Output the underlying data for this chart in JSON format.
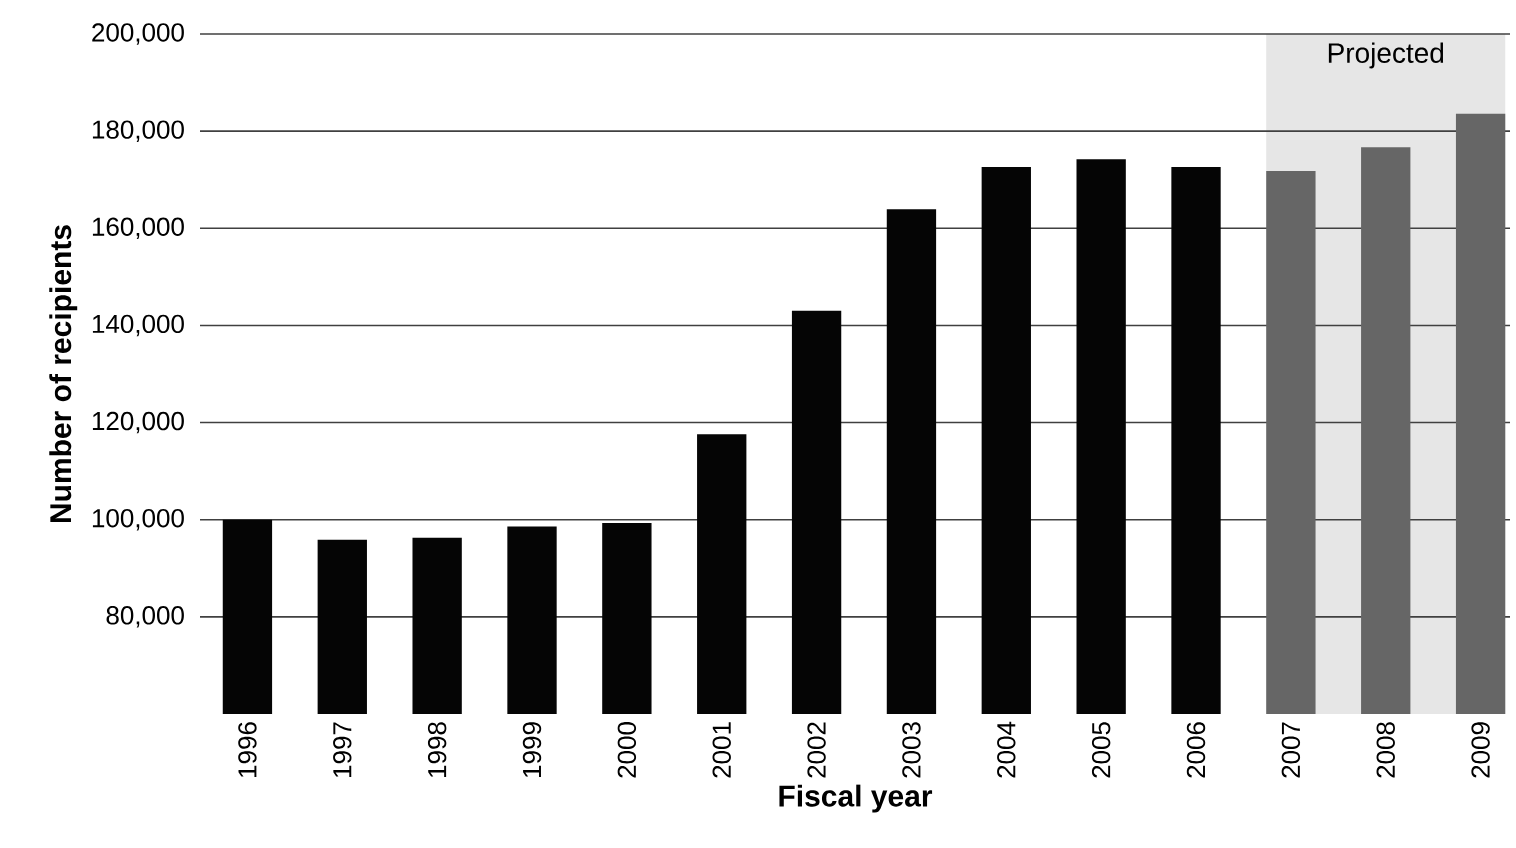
{
  "chart_data": {
    "type": "bar",
    "xlabel": "Fiscal year",
    "ylabel": "Number of recipients",
    "categories": [
      "1996",
      "1997",
      "1998",
      "1999",
      "2000",
      "2001",
      "2002",
      "2003",
      "2004",
      "2005",
      "2006",
      "2007",
      "2008",
      "2009"
    ],
    "values": [
      100000,
      95900,
      96300,
      98600,
      99300,
      117600,
      143000,
      163900,
      172600,
      174200,
      172600,
      171800,
      176700,
      183600
    ],
    "colors": [
      "#050505",
      "#050505",
      "#050505",
      "#050505",
      "#050505",
      "#050505",
      "#050505",
      "#050505",
      "#050505",
      "#050505",
      "#050505",
      "#666666",
      "#666666",
      "#666666"
    ],
    "ylim": [
      60000,
      200000
    ],
    "yticks": [
      {
        "value": 80000,
        "label": "80,000"
      },
      {
        "value": 100000,
        "label": "100,000"
      },
      {
        "value": 120000,
        "label": "120,000"
      },
      {
        "value": 140000,
        "label": "140,000"
      },
      {
        "value": 160000,
        "label": "160,000"
      },
      {
        "value": 180000,
        "label": "180,000"
      },
      {
        "value": 200000,
        "label": "200,000"
      }
    ],
    "bands": [
      {
        "axis": "x",
        "from": "2007",
        "to": "2009",
        "label": "Projected",
        "color": "#e6e6e6"
      }
    ],
    "grid": "y"
  }
}
